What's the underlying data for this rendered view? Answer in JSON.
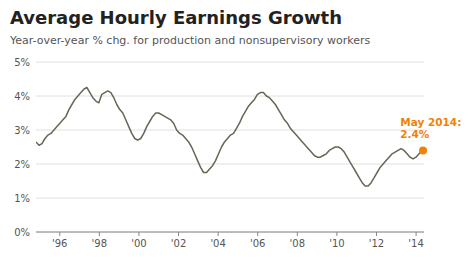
{
  "chart_data": {
    "type": "line",
    "title": "Average Hourly Earnings Growth",
    "subtitle": "Year-over-year % chg. for production and nonsupervisory workers",
    "series": [
      {
        "color": "#666655",
        "x": [
          1994.8,
          1994.9512,
          1995.1023,
          1995.2535,
          1995.4047,
          1995.5558,
          1995.707,
          1995.8581,
          1996.0093,
          1996.1605,
          1996.3116,
          1996.4628,
          1996.614,
          1996.7651,
          1996.9163,
          1997.0674,
          1997.2186,
          1997.3698,
          1997.5209,
          1997.6721,
          1997.8233,
          1997.9744,
          1998.1256,
          1998.2767,
          1998.4279,
          1998.5791,
          1998.7302,
          1998.8814,
          1999.0326,
          1999.1837,
          1999.3349,
          1999.486,
          1999.6372,
          1999.7884,
          1999.9395,
          2000.0907,
          2000.2419,
          2000.393,
          2000.5442,
          2000.6953,
          2000.8465,
          2000.9977,
          2001.1488,
          2001.3,
          2001.4512,
          2001.6023,
          2001.7535,
          2001.9047,
          2002.0558,
          2002.207,
          2002.3581,
          2002.5093,
          2002.6605,
          2002.8116,
          2002.9628,
          2003.114,
          2003.2651,
          2003.4163,
          2003.5674,
          2003.7186,
          2003.8698,
          2004.0209,
          2004.1721,
          2004.3233,
          2004.4744,
          2004.6256,
          2004.7767,
          2004.9279,
          2005.0791,
          2005.2302,
          2005.3814,
          2005.5326,
          2005.6837,
          2005.8349,
          2005.986,
          2006.1372,
          2006.2884,
          2006.4395,
          2006.5907,
          2006.7419,
          2006.893,
          2007.0442,
          2007.1953,
          2007.3465,
          2007.4977,
          2007.6488,
          2007.8,
          2007.9512,
          2008.1023,
          2008.2535,
          2008.4047,
          2008.5558,
          2008.707,
          2008.8581,
          2009.0093,
          2009.1605,
          2009.3116,
          2009.4628,
          2009.614,
          2009.7651,
          2009.9163,
          2010.0674,
          2010.2186,
          2010.3698,
          2010.5209,
          2010.6721,
          2010.8233,
          2010.9744,
          2011.1256,
          2011.2767,
          2011.4279,
          2011.5791,
          2011.7302,
          2011.8814,
          2012.0326,
          2012.1837,
          2012.3349,
          2012.486,
          2012.6372,
          2012.7884,
          2012.9395,
          2013.0907,
          2013.2419,
          2013.393,
          2013.5442,
          2013.6953,
          2013.8465,
          2013.9977,
          2014.1488,
          2014.3
        ],
        "values": [
          2.65,
          2.55,
          2.6,
          2.75,
          2.85,
          2.9,
          3.0,
          3.1,
          3.2,
          3.3,
          3.4,
          3.6,
          3.75,
          3.9,
          4.0,
          4.1,
          4.2,
          4.25,
          4.1,
          3.95,
          3.85,
          3.8,
          4.05,
          4.1,
          4.15,
          4.1,
          3.95,
          3.75,
          3.6,
          3.5,
          3.3,
          3.1,
          2.9,
          2.75,
          2.7,
          2.75,
          2.9,
          3.1,
          3.25,
          3.4,
          3.5,
          3.5,
          3.45,
          3.4,
          3.35,
          3.3,
          3.2,
          3.0,
          2.9,
          2.85,
          2.75,
          2.65,
          2.5,
          2.3,
          2.1,
          1.9,
          1.75,
          1.75,
          1.85,
          1.95,
          2.1,
          2.3,
          2.5,
          2.65,
          2.75,
          2.85,
          2.9,
          3.05,
          3.2,
          3.4,
          3.55,
          3.7,
          3.8,
          3.9,
          4.05,
          4.1,
          4.1,
          4.0,
          3.95,
          3.85,
          3.75,
          3.6,
          3.45,
          3.3,
          3.2,
          3.05,
          2.95,
          2.85,
          2.75,
          2.65,
          2.55,
          2.45,
          2.35,
          2.25,
          2.2,
          2.2,
          2.25,
          2.3,
          2.4,
          2.45,
          2.5,
          2.5,
          2.45,
          2.35,
          2.2,
          2.05,
          1.9,
          1.75,
          1.6,
          1.45,
          1.35,
          1.35,
          1.45,
          1.6,
          1.75,
          1.9,
          2.0,
          2.1,
          2.2,
          2.3,
          2.35,
          2.4,
          2.45,
          2.4,
          2.3,
          2.2,
          2.15,
          2.2,
          2.3,
          2.4
        ]
      },
      {
        "type": "scatter",
        "marker": "circle",
        "color": "#f0820a",
        "x": [
          2014.35
        ],
        "values": [
          2.4
        ]
      }
    ],
    "annotations": [
      {
        "text": "May 2014:\n2.4%",
        "x": 2013.2,
        "y": 3.05,
        "color": "#f0820a"
      }
    ],
    "xlim": [
      1994.8,
      2014.4
    ],
    "xticks": [
      {
        "value": 1996,
        "label": "'96"
      },
      {
        "value": 1998,
        "label": "'98"
      },
      {
        "value": 2000,
        "label": "'00"
      },
      {
        "value": 2002,
        "label": "'02"
      },
      {
        "value": 2004,
        "label": "'04"
      },
      {
        "value": 2006,
        "label": "'06"
      },
      {
        "value": 2008,
        "label": "'08"
      },
      {
        "value": 2010,
        "label": "'10"
      },
      {
        "value": 2012,
        "label": "'12"
      },
      {
        "value": 2014,
        "label": "'14"
      }
    ],
    "ylim": [
      0,
      5
    ],
    "yticks": [
      {
        "value": 0,
        "label": "0%"
      },
      {
        "value": 1,
        "label": "1%"
      },
      {
        "value": 2,
        "label": "2%"
      },
      {
        "value": 3,
        "label": "3%"
      },
      {
        "value": 4,
        "label": "4%"
      },
      {
        "value": 5,
        "label": "5%"
      }
    ],
    "grid": true
  }
}
